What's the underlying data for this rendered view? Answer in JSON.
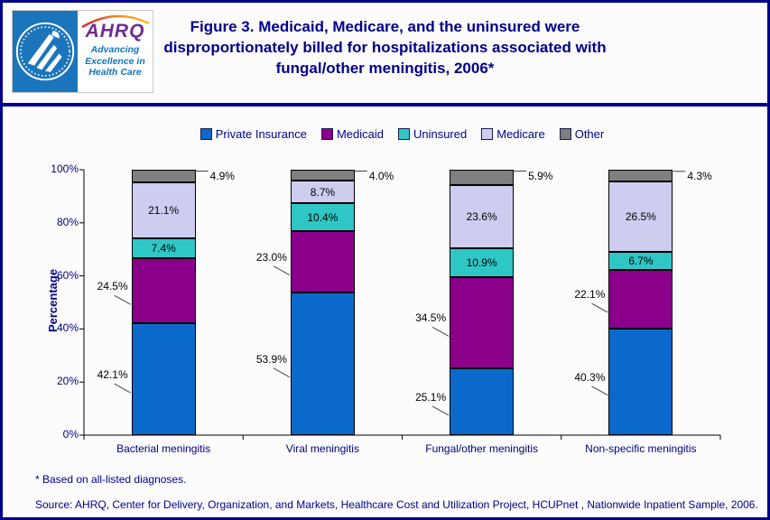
{
  "header": {
    "logo": {
      "acronym": "AHRQ",
      "tagline": "Advancing\nExcellence in\nHealth Care"
    },
    "title": "Figure 3. Medicaid, Medicare, and the uninsured were\ndisproportionately billed for hospitalizations associated with\nfungal/other meningitis, 2006*"
  },
  "chart_data": {
    "type": "bar",
    "stacked": true,
    "categories": [
      "Bacterial meningitis",
      "Viral meningitis",
      "Fungal/other meningitis",
      "Non-specific meningitis"
    ],
    "series": [
      {
        "name": "Private Insurance",
        "color": "#0B69CC",
        "values": [
          42.1,
          53.9,
          25.1,
          40.3
        ],
        "label_placement": "outside-left"
      },
      {
        "name": "Medicaid",
        "color": "#8B008B",
        "values": [
          24.5,
          23.0,
          34.5,
          22.1
        ],
        "label_placement": "outside-left"
      },
      {
        "name": "Uninsured",
        "color": "#2EC7C5",
        "values": [
          7.4,
          10.4,
          10.9,
          6.7
        ],
        "label_placement": "inside"
      },
      {
        "name": "Medicare",
        "color": "#CECDF0",
        "values": [
          21.1,
          8.7,
          23.6,
          26.5
        ],
        "label_placement": "inside"
      },
      {
        "name": "Other",
        "color": "#7F7F7F",
        "values": [
          4.9,
          4.0,
          5.9,
          4.3
        ],
        "label_placement": "outside-right"
      }
    ],
    "xlabel": "",
    "ylabel": "Percentage",
    "ylim": [
      0,
      100
    ],
    "y_ticks": [
      "0%",
      "20%",
      "40%",
      "60%",
      "80%",
      "100%"
    ],
    "grid": false,
    "legend_position": "top",
    "value_suffix": "%"
  },
  "footnotes": {
    "note": "* Based on all-listed diagnoses.",
    "source": "Source: AHRQ, Center for Delivery, Organization, and Markets, Healthcare Cost and Utilization Project, HCUPnet , Nationwide Inpatient Sample, 2006."
  },
  "colors": {
    "accent_navy": "#00008B",
    "hhs_blue": "#1B75BC",
    "ahrq_purple": "#6F2C91",
    "axis_black": "#000000"
  }
}
